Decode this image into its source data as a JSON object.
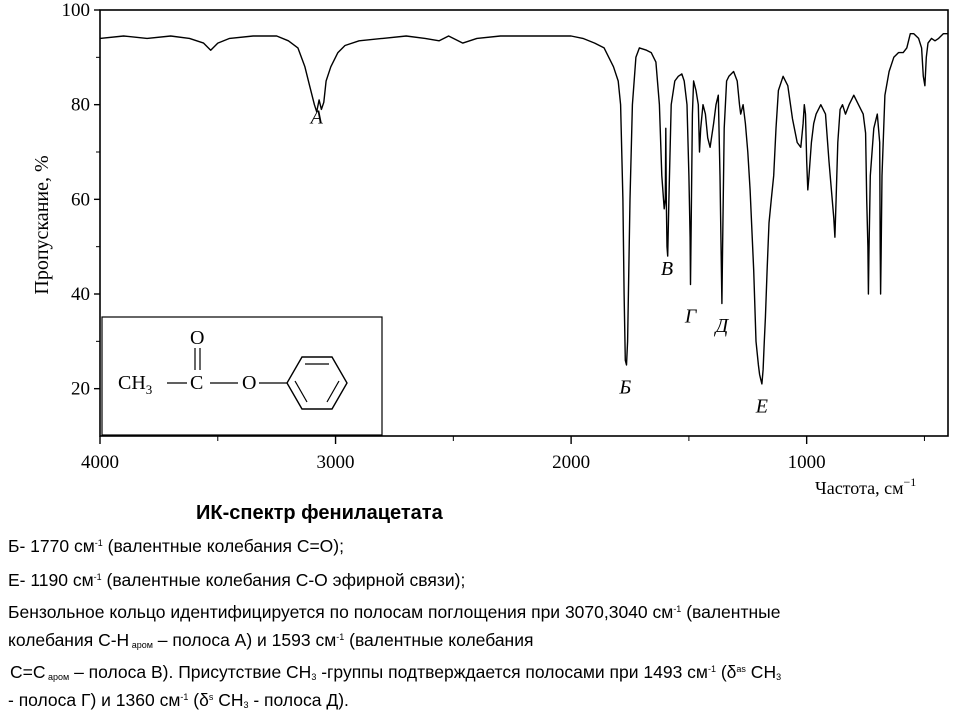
{
  "chart_data": {
    "type": "line",
    "xlabel": "Частота, см",
    "xlabel_sup": "−1",
    "ylabel": "Пропускание, %",
    "xlim": [
      4000,
      400
    ],
    "ylim": [
      10,
      100
    ],
    "x_ticks": [
      4000,
      3000,
      2000,
      1000
    ],
    "y_ticks": [
      20,
      40,
      60,
      80,
      100
    ],
    "grid": false,
    "series": [
      {
        "points": [
          [
            4000,
            94
          ],
          [
            3900,
            94.5
          ],
          [
            3800,
            94
          ],
          [
            3700,
            94.5
          ],
          [
            3620,
            94
          ],
          [
            3560,
            93
          ],
          [
            3530,
            91.5
          ],
          [
            3500,
            93
          ],
          [
            3450,
            94
          ],
          [
            3350,
            94.5
          ],
          [
            3250,
            94.5
          ],
          [
            3200,
            93.5
          ],
          [
            3160,
            92
          ],
          [
            3130,
            88
          ],
          [
            3110,
            84
          ],
          [
            3090,
            80
          ],
          [
            3080,
            78.5
          ],
          [
            3070,
            81
          ],
          [
            3060,
            79
          ],
          [
            3050,
            80.5
          ],
          [
            3040,
            85
          ],
          [
            3020,
            88
          ],
          [
            2990,
            91
          ],
          [
            2960,
            92.5
          ],
          [
            2900,
            93.5
          ],
          [
            2800,
            94
          ],
          [
            2700,
            94.5
          ],
          [
            2620,
            94
          ],
          [
            2560,
            93.5
          ],
          [
            2520,
            94.5
          ],
          [
            2460,
            93
          ],
          [
            2400,
            94
          ],
          [
            2300,
            94.5
          ],
          [
            2200,
            94.5
          ],
          [
            2100,
            94.5
          ],
          [
            2000,
            94.5
          ],
          [
            1950,
            94
          ],
          [
            1900,
            93
          ],
          [
            1860,
            92
          ],
          [
            1820,
            88
          ],
          [
            1800,
            85
          ],
          [
            1790,
            80
          ],
          [
            1780,
            60
          ],
          [
            1775,
            40
          ],
          [
            1770,
            26
          ],
          [
            1765,
            25
          ],
          [
            1760,
            30
          ],
          [
            1750,
            60
          ],
          [
            1740,
            80
          ],
          [
            1725,
            90
          ],
          [
            1710,
            92
          ],
          [
            1680,
            91.5
          ],
          [
            1660,
            91
          ],
          [
            1640,
            89
          ],
          [
            1625,
            80
          ],
          [
            1615,
            65
          ],
          [
            1605,
            58
          ],
          [
            1600,
            60
          ],
          [
            1598,
            75
          ],
          [
            1596,
            60
          ],
          [
            1593,
            50
          ],
          [
            1590,
            48
          ],
          [
            1585,
            60
          ],
          [
            1575,
            80
          ],
          [
            1560,
            85
          ],
          [
            1545,
            86
          ],
          [
            1530,
            86.5
          ],
          [
            1520,
            85
          ],
          [
            1508,
            80
          ],
          [
            1500,
            65
          ],
          [
            1495,
            52
          ],
          [
            1493,
            42
          ],
          [
            1490,
            55
          ],
          [
            1485,
            78
          ],
          [
            1480,
            85
          ],
          [
            1470,
            83
          ],
          [
            1460,
            80
          ],
          [
            1455,
            70
          ],
          [
            1450,
            75
          ],
          [
            1440,
            80
          ],
          [
            1430,
            78
          ],
          [
            1420,
            73
          ],
          [
            1410,
            71
          ],
          [
            1395,
            76
          ],
          [
            1385,
            80
          ],
          [
            1375,
            82
          ],
          [
            1368,
            65
          ],
          [
            1362,
            45
          ],
          [
            1360,
            38
          ],
          [
            1357,
            50
          ],
          [
            1350,
            75
          ],
          [
            1340,
            85
          ],
          [
            1330,
            86
          ],
          [
            1310,
            87
          ],
          [
            1295,
            85
          ],
          [
            1285,
            80
          ],
          [
            1280,
            78
          ],
          [
            1270,
            80
          ],
          [
            1260,
            76
          ],
          [
            1250,
            70
          ],
          [
            1240,
            62
          ],
          [
            1225,
            45
          ],
          [
            1215,
            30
          ],
          [
            1205,
            25
          ],
          [
            1200,
            23
          ],
          [
            1195,
            22
          ],
          [
            1190,
            21
          ],
          [
            1185,
            24
          ],
          [
            1180,
            30
          ],
          [
            1175,
            35
          ],
          [
            1168,
            45
          ],
          [
            1160,
            55
          ],
          [
            1150,
            60
          ],
          [
            1140,
            65
          ],
          [
            1130,
            75
          ],
          [
            1120,
            83
          ],
          [
            1100,
            86
          ],
          [
            1080,
            84
          ],
          [
            1060,
            77
          ],
          [
            1040,
            72
          ],
          [
            1025,
            71
          ],
          [
            1015,
            76
          ],
          [
            1010,
            80
          ],
          [
            1005,
            78
          ],
          [
            1000,
            68
          ],
          [
            995,
            62
          ],
          [
            990,
            65
          ],
          [
            980,
            72
          ],
          [
            970,
            76
          ],
          [
            960,
            78
          ],
          [
            940,
            80
          ],
          [
            920,
            78
          ],
          [
            905,
            68
          ],
          [
            895,
            62
          ],
          [
            885,
            56
          ],
          [
            880,
            52
          ],
          [
            875,
            60
          ],
          [
            868,
            72
          ],
          [
            858,
            79
          ],
          [
            848,
            80
          ],
          [
            835,
            78
          ],
          [
            820,
            80
          ],
          [
            800,
            82
          ],
          [
            780,
            80
          ],
          [
            760,
            78
          ],
          [
            750,
            74
          ],
          [
            745,
            60
          ],
          [
            740,
            50
          ],
          [
            738,
            40
          ],
          [
            736,
            48
          ],
          [
            730,
            65
          ],
          [
            715,
            75
          ],
          [
            700,
            78
          ],
          [
            690,
            72
          ],
          [
            688,
            50
          ],
          [
            686,
            40
          ],
          [
            684,
            48
          ],
          [
            680,
            65
          ],
          [
            668,
            82
          ],
          [
            650,
            87
          ],
          [
            630,
            90
          ],
          [
            610,
            91
          ],
          [
            590,
            91
          ],
          [
            575,
            92
          ],
          [
            560,
            95
          ],
          [
            545,
            95
          ],
          [
            525,
            94
          ],
          [
            512,
            92
          ],
          [
            505,
            86
          ],
          [
            498,
            84
          ],
          [
            492,
            90
          ],
          [
            485,
            93
          ],
          [
            470,
            94
          ],
          [
            455,
            93.5
          ],
          [
            440,
            94
          ],
          [
            420,
            95
          ],
          [
            400,
            95
          ]
        ]
      }
    ],
    "annotations": [
      {
        "label": "А",
        "x": 3080,
        "y": 76
      },
      {
        "label": "Б",
        "x": 1770,
        "y": 19
      },
      {
        "label": "В",
        "x": 1593,
        "y": 44
      },
      {
        "label": "Г",
        "x": 1493,
        "y": 34
      },
      {
        "label": "Д",
        "x": 1360,
        "y": 32
      },
      {
        "label": "Е",
        "x": 1190,
        "y": 15
      }
    ],
    "inset": {
      "formula_left": "CH",
      "formula_sub": "3",
      "dash1": "—",
      "carbon": "C",
      "dash2": "—",
      "oxygen_ester": "O",
      "oxygen_carbonyl": "O"
    }
  },
  "caption": {
    "title": "ИК-спектр фенилацетата",
    "line1_text": "Б- 1770  см",
    "line1_sup": "-1",
    "line1_rest": " (валентные колебания С=О);",
    "line2_text": "Е- 1190  см",
    "line2_sup": "-1",
    "line2_rest": " (валентные колебания С-О эфирной связи);",
    "line3_text": "Бензольное кольцо идентифицируется по полосам поглощения при 3070,3040 см",
    "line3_sup": "-1",
    "line3_rest": " (валентные",
    "line4_text": "колебания С-Н",
    "line4_sub": " аром",
    "line4_mid": " – полоса А) и 1593 см",
    "line4_sup": "-1",
    "line4_rest": " (валентные колебания",
    "line5_text": " С=С",
    "line5_sub": " аром",
    "line5_mid": " – полоса В). Присутствие СН",
    "line5_sub2": "3",
    "line5_mid2": " -группы подтверждается полосами при 1493 см",
    "line5_sup": "-1",
    "line5_mid3": " (δ",
    "line5_sup2": "as",
    "line5_rest": " СН",
    "line5_sub3": "3",
    "line6_text": "- полоса Г) и 1360 см",
    "line6_sup": "-1",
    "line6_mid": " (δ",
    "line6_sup2": "s",
    "line6_mid2": " СН",
    "line6_sub": "3",
    "line6_rest": " - полоса Д)."
  }
}
